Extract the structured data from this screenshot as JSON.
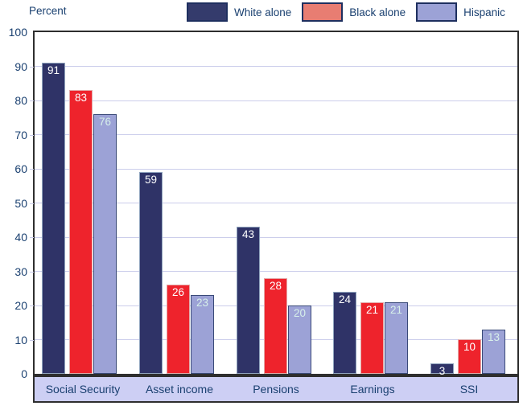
{
  "header": {
    "axis_title": "Percent"
  },
  "chart_data": {
    "type": "bar",
    "title": "",
    "ylabel": "Percent",
    "xlabel": "",
    "ylim": [
      0,
      100
    ],
    "yticks": [
      0,
      10,
      20,
      30,
      40,
      50,
      60,
      70,
      80,
      90,
      100
    ],
    "grid": true,
    "legend_position": "top",
    "categories": [
      "Social Security",
      "Asset income",
      "Pensions",
      "Earnings",
      "SSI"
    ],
    "series": [
      {
        "name": "White alone",
        "values": [
          91,
          59,
          43,
          24,
          3
        ],
        "bar_color": "#2f3367",
        "bar_border_color": "#8fa3bd",
        "value_label_color": "#ffffff",
        "legend_swatch_color": "#343b6c"
      },
      {
        "name": "Black alone",
        "values": [
          83,
          26,
          28,
          21,
          10
        ],
        "bar_color": "#ee232c",
        "bar_border_color": "#e3a9a8",
        "value_label_color": "#ffffff",
        "legend_swatch_color": "#e87d72"
      },
      {
        "name": "Hispanic",
        "values": [
          76,
          23,
          20,
          21,
          13
        ],
        "bar_color": "#9ca2d6",
        "bar_border_color": "#3a4a78",
        "value_label_color": "#d7f0ea",
        "legend_swatch_color": "#9ca2d6"
      }
    ]
  },
  "colors": {
    "text": "#1a4070",
    "gridline": "#cbcdeb",
    "plot_border": "#2e2e2e",
    "category_band_bg": "#cdcff4",
    "legend_swatch_border": "#1e2f5f"
  }
}
